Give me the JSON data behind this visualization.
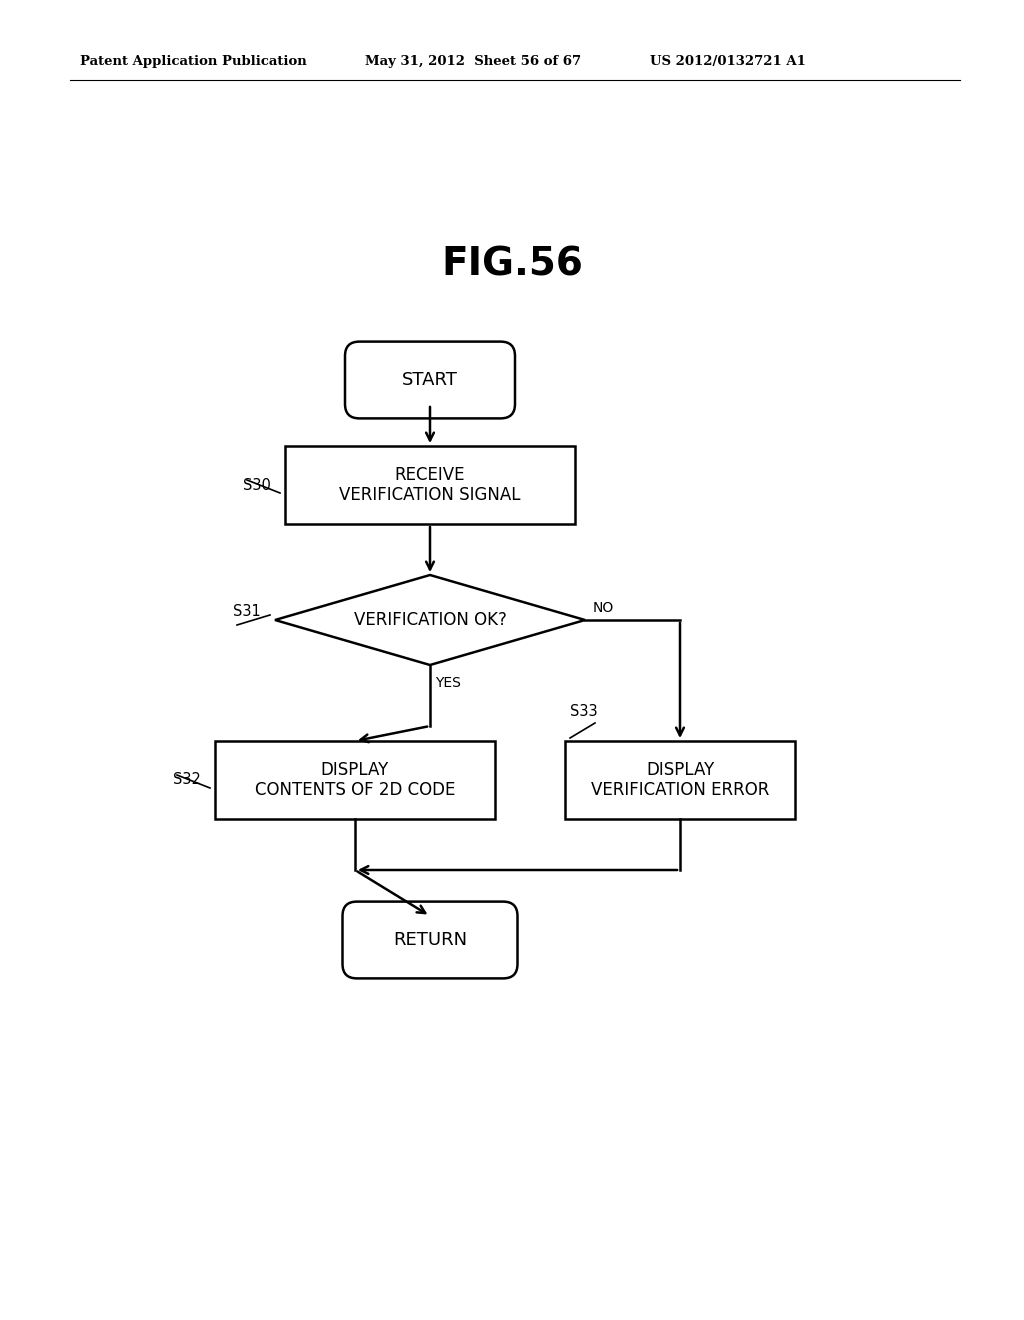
{
  "title": "FIG.56",
  "header_left": "Patent Application Publication",
  "header_mid": "May 31, 2012  Sheet 56 of 67",
  "header_right": "US 2012/0132721 A1",
  "bg_color": "#ffffff",
  "line_color": "#000000",
  "start_label": "START",
  "s30_label": "RECEIVE\nVERIFICATION SIGNAL",
  "s30_tag": "S30",
  "s31_label": "VERIFICATION OK?",
  "s31_tag": "S31",
  "s32_label": "DISPLAY\nCONTENTS OF 2D CODE",
  "s32_tag": "S32",
  "s33_label": "DISPLAY\nVERIFICATION ERROR",
  "s33_tag": "S33",
  "return_label": "RETURN",
  "yes_label": "YES",
  "no_label": "NO"
}
